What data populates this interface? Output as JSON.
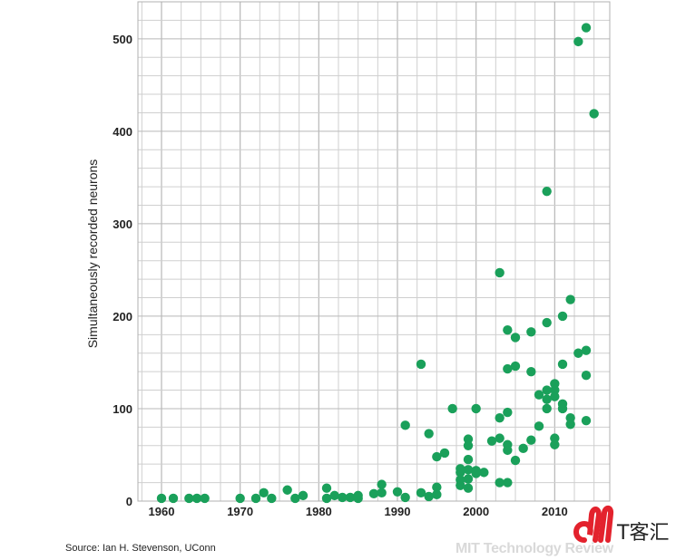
{
  "chart_data": {
    "type": "scatter",
    "xlabel": "",
    "ylabel": "Simultaneously recorded neurons",
    "xlim": [
      1957,
      2017
    ],
    "ylim": [
      0,
      540
    ],
    "x_ticks": [
      1960,
      1970,
      1980,
      1990,
      2000,
      2010
    ],
    "y_ticks": [
      0,
      100,
      200,
      300,
      400,
      500
    ],
    "grid": true,
    "point_color": "#1aa05a",
    "points": [
      [
        1960,
        3
      ],
      [
        1961.5,
        3
      ],
      [
        1963.5,
        3
      ],
      [
        1964.5,
        3
      ],
      [
        1965.5,
        3
      ],
      [
        1970,
        3
      ],
      [
        1972,
        3
      ],
      [
        1973,
        9
      ],
      [
        1974,
        3
      ],
      [
        1976,
        12
      ],
      [
        1977,
        3
      ],
      [
        1978,
        6
      ],
      [
        1981,
        14
      ],
      [
        1981,
        3
      ],
      [
        1982,
        6
      ],
      [
        1983,
        4
      ],
      [
        1984,
        4
      ],
      [
        1985,
        6
      ],
      [
        1985,
        3
      ],
      [
        1987,
        8
      ],
      [
        1988,
        18
      ],
      [
        1988,
        9
      ],
      [
        1990,
        10
      ],
      [
        1991,
        82
      ],
      [
        1991,
        4
      ],
      [
        1993,
        148
      ],
      [
        1993,
        9
      ],
      [
        1994,
        73
      ],
      [
        1994,
        5
      ],
      [
        1995,
        48
      ],
      [
        1995,
        15
      ],
      [
        1995,
        7
      ],
      [
        1996,
        52
      ],
      [
        1997,
        100
      ],
      [
        1998,
        35
      ],
      [
        1998,
        31
      ],
      [
        1998,
        23
      ],
      [
        1998,
        17
      ],
      [
        1999,
        67
      ],
      [
        1999,
        60
      ],
      [
        1999,
        45
      ],
      [
        1999,
        34
      ],
      [
        1999,
        24
      ],
      [
        1999,
        14
      ],
      [
        2000,
        100
      ],
      [
        2000,
        33
      ],
      [
        2000,
        30
      ],
      [
        2001,
        31
      ],
      [
        2002,
        65
      ],
      [
        2003,
        247
      ],
      [
        2003,
        90
      ],
      [
        2003,
        68
      ],
      [
        2003,
        20
      ],
      [
        2004,
        185
      ],
      [
        2004,
        143
      ],
      [
        2004,
        96
      ],
      [
        2004,
        61
      ],
      [
        2004,
        55
      ],
      [
        2004,
        20
      ],
      [
        2005,
        177
      ],
      [
        2005,
        146
      ],
      [
        2005,
        44
      ],
      [
        2006,
        57
      ],
      [
        2007,
        183
      ],
      [
        2007,
        140
      ],
      [
        2007,
        66
      ],
      [
        2008,
        115
      ],
      [
        2008,
        81
      ],
      [
        2009,
        335
      ],
      [
        2009,
        193
      ],
      [
        2009,
        120
      ],
      [
        2009,
        110
      ],
      [
        2009,
        100
      ],
      [
        2010,
        127
      ],
      [
        2010,
        120
      ],
      [
        2010,
        113
      ],
      [
        2010,
        68
      ],
      [
        2010,
        61
      ],
      [
        2011,
        200
      ],
      [
        2011,
        148
      ],
      [
        2011,
        105
      ],
      [
        2011,
        100
      ],
      [
        2012,
        218
      ],
      [
        2012,
        90
      ],
      [
        2012,
        83
      ],
      [
        2013,
        497
      ],
      [
        2013,
        160
      ],
      [
        2014,
        512
      ],
      [
        2014,
        163
      ],
      [
        2014,
        136
      ],
      [
        2014,
        87
      ],
      [
        2015,
        419
      ]
    ]
  },
  "source": "Source: Ian H. Stevenson, UConn",
  "watermark": "MIT Technology Review",
  "logo_text": "T客汇"
}
